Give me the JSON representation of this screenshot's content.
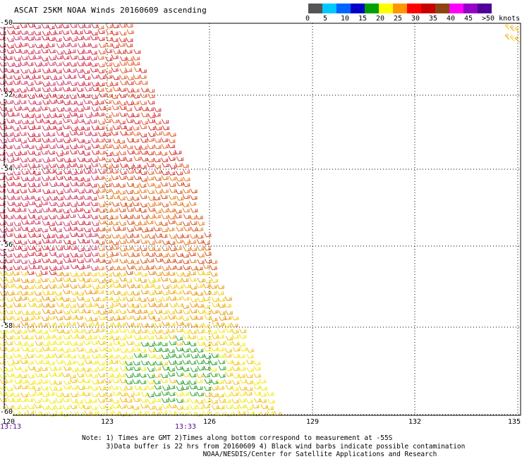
{
  "title": "ASCAT 25KM NOAA Winds 20160609 ascending",
  "legend": {
    "colors": [
      "#555555",
      "#00c8ff",
      "#0064ff",
      "#0000c8",
      "#00a000",
      "#ffff00",
      "#ff9600",
      "#ff0000",
      "#c80000",
      "#8b4513",
      "#ff00ff",
      "#9600c8",
      "#500096"
    ],
    "labels": [
      "0",
      "5",
      "10",
      "15",
      "20",
      "25",
      "30",
      "35",
      "40",
      "45",
      ">50 knots"
    ]
  },
  "map": {
    "lat_labels": [
      "-50",
      "-52",
      "-54",
      "-56",
      "-58",
      "-60"
    ],
    "lon_labels": [
      "120",
      "123",
      "126",
      "129",
      "132",
      "135"
    ],
    "lon_range": [
      120,
      135
    ],
    "lat_range": [
      -60,
      -50
    ],
    "time_labels": [
      "13:13",
      "13:33"
    ]
  },
  "notes": [
    "Note: 1) Times are GMT 2)Times along bottom correspond to measurement at -55S",
    "      3)Data buffer is 22 hrs from 20160609 4) Black wind barbs indicate possible contamination",
    "                              NOAA/NESDIS/Center for Satellite Applications and Research"
  ]
}
